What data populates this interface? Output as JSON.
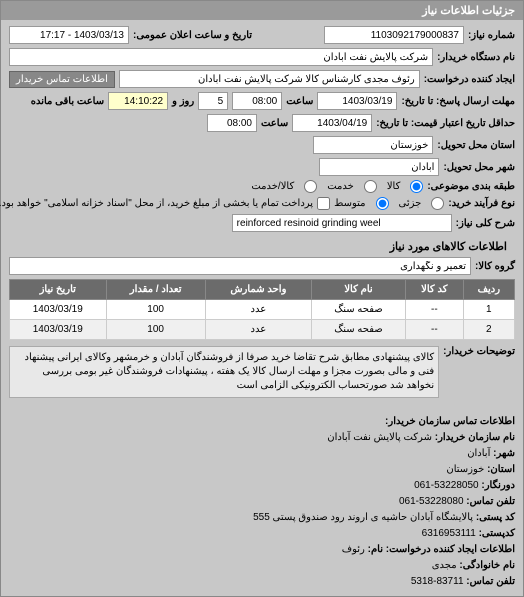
{
  "panel_title": "جزئیات اطلاعات نیاز",
  "header": {
    "req_no_label": "شماره نیاز:",
    "req_no": "1103092179000837",
    "announce_label": "تاریخ و ساعت اعلان عمومی:",
    "announce_value": "1403/03/13 - 17:17",
    "buyer_label": "نام دستگاه خریدار:",
    "buyer_value": "شرکت پالایش نفت آبادان",
    "creator_label": "ایجاد کننده درخواست:",
    "creator_value": "رئوف مجدی کارشناس کالا شرکت پالایش نفت آبادان",
    "contact_link": "اطلاعات تماس خریدار"
  },
  "deadlines": {
    "reply_label": "مهلت ارسال پاسخ: تا تاریخ:",
    "reply_date": "1403/03/19",
    "reply_time_label": "ساعت",
    "reply_time": "08:00",
    "remain_label": "روز و",
    "remain_days": "5",
    "remain_time": "14:10:22",
    "remain_suffix": "ساعت باقی مانده",
    "validity_label": "حداقل تاریخ اعتبار قیمت: تا تاریخ:",
    "validity_date": "1403/04/19",
    "validity_time": "08:00"
  },
  "location": {
    "province_label": "استان محل تحویل:",
    "province": "خوزستان",
    "city_label": "شهر محل تحویل:",
    "city": "آبادان"
  },
  "budget": {
    "type_label": "طبقه بندی موضوعی:",
    "opt_goods": "کالا",
    "opt_service": "خدمت",
    "opt_goods_service": "کالا/خدمت"
  },
  "process": {
    "type_label": "نوع فرآیند خرید:",
    "opt_small": "جزئی",
    "opt_medium": "متوسط",
    "note": "پرداخت تمام یا بخشی از مبلغ خرید، از محل \"اسناد خزانه اسلامی\" خواهد بود."
  },
  "need": {
    "title_label": "شرح کلی نیاز:",
    "title_value": "reinforced resinoid grinding weel"
  },
  "goods_section": "اطلاعات کالاهای مورد نیاز",
  "group": {
    "label": "گروه کالا:",
    "value": "تعمیر و نگهداری"
  },
  "table": {
    "cols": [
      "ردیف",
      "کد کالا",
      "نام کالا",
      "واحد شمارش",
      "تعداد / مقدار",
      "تاریخ نیاز"
    ],
    "rows": [
      [
        "1",
        "--",
        "صفحه سنگ",
        "عدد",
        "100",
        "1403/03/19"
      ],
      [
        "2",
        "--",
        "صفحه سنگ",
        "عدد",
        "100",
        "1403/03/19"
      ]
    ]
  },
  "description": {
    "label": "توضیحات خریدار:",
    "text": "کالای پیشنهادی مطابق شرح تقاضا خرید صرفا از فروشندگان آبادان و خرمشهر وکالای ایرانی پیشنهاد فنی و مالی بصورت مجزا و مهلت ارسال کالا یک هفته ، پیشنهادات فروشندگان غیر بومی بررسی نخواهد شد صورتحساب الکترونیکی الزامی است"
  },
  "contact": {
    "section_title": "اطلاعات تماس سازمان خریدار:",
    "org_label": "نام سازمان خریدار:",
    "org": "شرکت پالایش نفت آبادان",
    "city_label": "شهر:",
    "city": "آبادان",
    "province_label": "استان:",
    "province": "خوزستان",
    "fax_label": "دورنگار:",
    "fax": "53228050-061",
    "phone_label": "تلفن تماس:",
    "phone": "53228080-061",
    "postal_label": "کد پستی:",
    "postal": "پالایشگاه آبادان حاشیه ی اروند رود صندوق پستی 555",
    "postcode_label": "کدپستی:",
    "postcode": "6316953111",
    "req_section": "اطلاعات ایجاد کننده درخواست:",
    "fname_label": "نام:",
    "fname": "رئوف",
    "lname_label": "نام خانوادگی:",
    "lname": "مجدی",
    "rphone_label": "تلفن تماس:",
    "rphone": "83711-5318"
  }
}
